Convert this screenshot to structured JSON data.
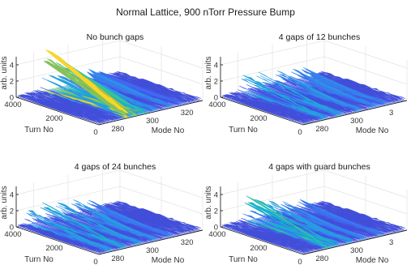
{
  "figure_title": "Normal Lattice, 900 nTorr Pressure Bump",
  "colors": {
    "colormap": [
      "#3e26a8",
      "#4462f1",
      "#2c96e8",
      "#15b4cb",
      "#3fc492",
      "#a9c13a",
      "#f9d52b"
    ],
    "axis": "#262626",
    "grid": "#e3e3e3"
  },
  "chart_data": [
    {
      "type": "surface",
      "title": "No bunch gaps",
      "xlabel": "Turn No",
      "ylabel": "Mode No",
      "zlabel": "arb. units",
      "xticks": [
        "4000",
        "2000",
        "0"
      ],
      "yticks": [
        "280",
        "300",
        "320"
      ],
      "zticks": [
        "0",
        "2",
        "4"
      ],
      "zlim": [
        0,
        5
      ],
      "peaks": [
        {
          "mode": 287,
          "amplitude": 4.8,
          "growth_turn": 0
        },
        {
          "mode": 292,
          "amplitude": 3.9,
          "growth_turn": 1000
        },
        {
          "mode": 297,
          "amplitude": 2.8,
          "growth_turn": 2000
        },
        {
          "mode": 303,
          "amplitude": 1.4,
          "growth_turn": 3000
        },
        {
          "mode": 312,
          "amplitude": 1.2,
          "growth_turn": 3500
        },
        {
          "mode": 318,
          "amplitude": 0.6,
          "growth_turn": 3800
        }
      ]
    },
    {
      "type": "surface",
      "title": "4 gaps of 12 bunches",
      "xlabel": "Turn No",
      "ylabel": "Mode No",
      "zlabel": "arb. units",
      "xticks": [
        "4000",
        "2000",
        "0"
      ],
      "yticks": [
        "280",
        "300",
        "3"
      ],
      "zticks": [
        "0",
        "2",
        "4"
      ],
      "zlim": [
        0,
        5
      ],
      "peaks": [
        {
          "mode": 283,
          "amplitude": 1.9,
          "growth_turn": 800
        },
        {
          "mode": 292,
          "amplitude": 1.7,
          "growth_turn": 1200
        },
        {
          "mode": 303,
          "amplitude": 1.3,
          "growth_turn": 1800
        },
        {
          "mode": 312,
          "amplitude": 1.2,
          "growth_turn": 2400
        },
        {
          "mode": 318,
          "amplitude": 1.1,
          "growth_turn": 3000
        }
      ]
    },
    {
      "type": "surface",
      "title": "4 gaps of 24 bunches",
      "xlabel": "Turn No",
      "ylabel": "Mode No",
      "zlabel": "arb. units",
      "xticks": [
        "4000",
        "2000",
        "0"
      ],
      "yticks": [
        "280",
        "300",
        "320"
      ],
      "zticks": [
        "0",
        "2",
        "4"
      ],
      "zlim": [
        0,
        5
      ],
      "peaks": [
        {
          "mode": 277,
          "amplitude": 1.5,
          "growth_turn": 1500
        },
        {
          "mode": 285,
          "amplitude": 2.0,
          "growth_turn": 1000
        },
        {
          "mode": 294,
          "amplitude": 1.6,
          "growth_turn": 1400
        },
        {
          "mode": 303,
          "amplitude": 1.4,
          "growth_turn": 2000
        },
        {
          "mode": 312,
          "amplitude": 1.0,
          "growth_turn": 2600
        }
      ]
    },
    {
      "type": "surface",
      "title": "4 gaps with guard bunches",
      "xlabel": "Turn No",
      "ylabel": "Mode No",
      "zlabel": "arb. units",
      "xticks": [
        "4000",
        "2000",
        "0"
      ],
      "yticks": [
        "280",
        "300",
        "3"
      ],
      "zticks": [
        "0",
        "2",
        "4"
      ],
      "zlim": [
        0,
        5
      ],
      "peaks": [
        {
          "mode": 285,
          "amplitude": 2.8,
          "growth_turn": 500
        },
        {
          "mode": 290,
          "amplitude": 2.2,
          "growth_turn": 900
        },
        {
          "mode": 298,
          "amplitude": 1.6,
          "growth_turn": 1600
        },
        {
          "mode": 306,
          "amplitude": 1.0,
          "growth_turn": 2200
        },
        {
          "mode": 316,
          "amplitude": 0.8,
          "growth_turn": 2800
        }
      ]
    }
  ]
}
